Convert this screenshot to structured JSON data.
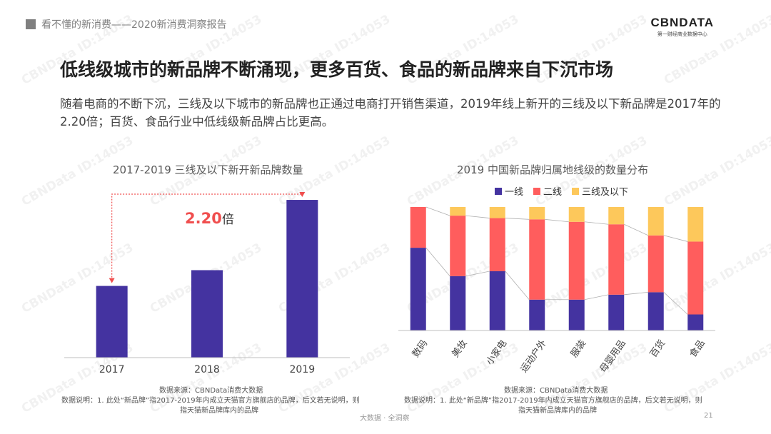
{
  "header": {
    "report_title": "看不懂的新消费——2020新消费洞察报告"
  },
  "logo": {
    "name": "CBNDATA",
    "tagline": "第一财经商业数据中心"
  },
  "slide": {
    "title": "低线级城市的新品牌不断涌现，更多百货、食品的新品牌来自下沉市场",
    "description": "随着电商的不断下沉，三线及以下城市的新品牌也正通过电商打开销售渠道，2019年线上新开的三线及以下新品牌是2017年的2.20倍；百货、食品行业中低线级新品牌占比更高。"
  },
  "chart_data": [
    {
      "type": "bar",
      "title": "2017-2019 三线及以下新开新品牌数量",
      "categories": [
        "2017",
        "2018",
        "2019"
      ],
      "values": [
        1.0,
        1.22,
        2.2
      ],
      "annotation": "2.20",
      "annotation_suffix": "倍",
      "color": "#4433a0",
      "ylim": [
        0,
        2.3
      ]
    },
    {
      "type": "bar",
      "stacked": true,
      "percent": true,
      "title": "2019 中国新品牌归属地线级的数量分布",
      "legend_position": "top",
      "categories": [
        "数码",
        "美妆",
        "小家电",
        "运动户外",
        "服装",
        "母婴用品",
        "百货",
        "食品"
      ],
      "series": [
        {
          "name": "一线",
          "color": "#4433a0",
          "values": [
            67,
            44,
            48,
            25,
            25,
            29,
            31,
            13
          ]
        },
        {
          "name": "二线",
          "color": "#ff5d5d",
          "values": [
            33,
            49,
            43,
            65,
            63,
            57,
            46,
            59
          ]
        },
        {
          "name": "三线及以下",
          "color": "#fdc85b",
          "values": [
            0,
            7,
            9,
            10,
            12,
            14,
            23,
            28
          ]
        }
      ],
      "ylim": [
        0,
        100
      ]
    }
  ],
  "notes": {
    "left": [
      "数据来源：CBNData消费大数据",
      "数据说明：1. 此处“新品牌”指2017-2019年内成立天猫官方旗舰店的品牌，后文若无说明，则",
      "指天猫新品牌库内的品牌"
    ],
    "right": [
      "数据来源：CBNData消费大数据",
      "数据说明：1. 此处“新品牌”指2017-2019年内成立天猫官方旗舰店的品牌，后文若无说明，则",
      "指天猫新品牌库内的品牌"
    ]
  },
  "footer": {
    "text": "大数据 · 全洞察",
    "page": "21"
  },
  "watermark": "CBNData ID:14053"
}
